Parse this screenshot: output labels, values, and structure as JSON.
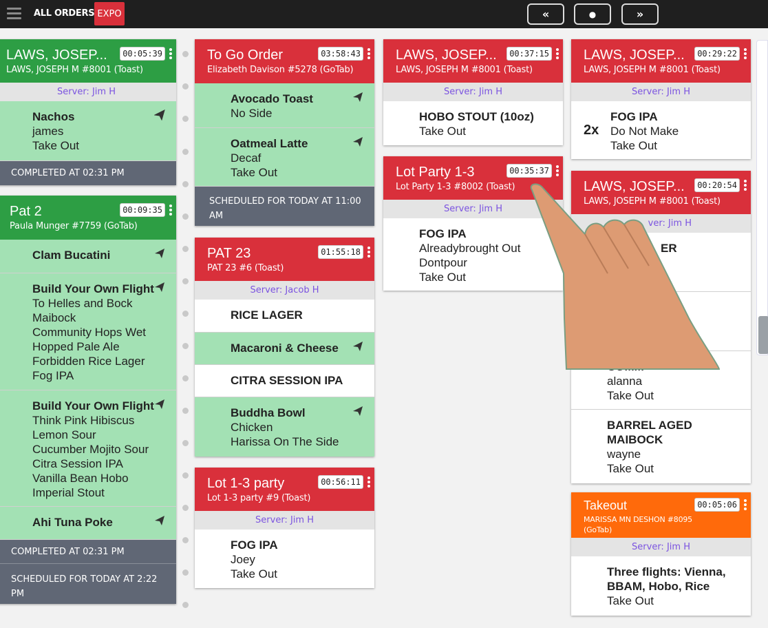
{
  "topbar": {
    "title": "ALL ORDERS",
    "badge": "EXPO",
    "nav_prev": "«",
    "nav_center": "●",
    "nav_next": "»"
  },
  "server_prefix": "Server: ",
  "cards": {
    "c1": {
      "name": "LAWS, JOSEP...",
      "sub": "LAWS, JOSEPH M #8001 (Toast)",
      "timer": "00:05:39",
      "server": "Server: Jim H",
      "items": [
        {
          "name": "Nachos",
          "lines": [
            "james",
            "Take Out"
          ]
        }
      ],
      "footer": "COMPLETED AT 02:31 PM"
    },
    "c2": {
      "name": "Pat 2",
      "sub": "Paula Munger #7759 (GoTab)",
      "timer": "00:09:35",
      "items": [
        {
          "name": "Clam Bucatini",
          "lines": []
        },
        {
          "name": "Build Your Own Flight",
          "lines": [
            "To Helles and Bock",
            "Maibock",
            "Community Hops Wet",
            "Hopped Pale Ale",
            "Forbidden Rice Lager",
            "Fog IPA"
          ]
        },
        {
          "name": "Build Your Own Flight",
          "lines": [
            "Think Pink Hibiscus",
            "Lemon Sour",
            "Cucumber Mojito Sour",
            "Citra Session IPA",
            "Vanilla Bean Hobo",
            "Imperial Stout"
          ]
        },
        {
          "name": "Ahi Tuna Poke",
          "lines": []
        }
      ],
      "footer1": "COMPLETED AT 02:31 PM",
      "footer2": "SCHEDULED FOR TODAY AT 2:22 PM"
    },
    "c3": {
      "name": "To Go Order",
      "sub": "Elizabeth Davison #5278 (GoTab)",
      "timer": "03:58:43",
      "items": [
        {
          "name": "Avocado Toast",
          "lines": [
            "No Side"
          ]
        },
        {
          "name": "Oatmeal Latte",
          "lines": [
            "Decaf",
            "Take Out"
          ]
        }
      ],
      "footer": "SCHEDULED FOR TODAY AT 11:00 AM"
    },
    "c4": {
      "name": "PAT 23",
      "sub": "PAT 23 #6 (Toast)",
      "timer": "01:55:18",
      "server": "Server: Jacob H",
      "items": [
        {
          "name": "RICE LAGER",
          "lines": []
        },
        {
          "name": "Macaroni & Cheese",
          "lines": []
        },
        {
          "name": "CITRA SESSION IPA",
          "lines": []
        },
        {
          "name": "Buddha Bowl",
          "lines": [
            "Chicken",
            "Harissa On The Side"
          ]
        }
      ]
    },
    "c5": {
      "name": "Lot 1-3 party",
      "sub": "Lot 1-3 party #9 (Toast)",
      "timer": "00:56:11",
      "server": "Server: Jim H",
      "items": [
        {
          "name": "FOG IPA",
          "lines": [
            "Joey",
            "Take Out"
          ]
        }
      ]
    },
    "c6": {
      "name": "LAWS, JOSEP...",
      "sub": "LAWS, JOSEPH M #8001 (Toast)",
      "timer": "00:37:15",
      "server": "Server: Jim H",
      "items": [
        {
          "name": "HOBO STOUT (10oz)",
          "lines": [
            "Take Out"
          ]
        }
      ]
    },
    "c7": {
      "name": "Lot Party 1-3",
      "sub": "Lot Party 1-3 #8002 (Toast)",
      "timer": "00:35:37",
      "server": "Server: Jim H",
      "items": [
        {
          "name": "FOG IPA",
          "lines": [
            "Alreadybrought Out",
            "Dontpour",
            "Take Out"
          ]
        }
      ]
    },
    "c8": {
      "name": "LAWS, JOSEP...",
      "sub": "LAWS, JOSEPH M #8001 (Toast)",
      "timer": "00:29:22",
      "server": "Server: Jim H",
      "items": [
        {
          "qty": "2x",
          "name": "FOG IPA",
          "lines": [
            "Do Not Make",
            "Take Out"
          ]
        }
      ]
    },
    "c9": {
      "name": "LAWS, JOSEP...",
      "sub": "LAWS, JOSEPH M #8001 (Toast)",
      "timer": "00:20:54",
      "server": "ver: Jim H",
      "items": [
        {
          "name": "ER",
          "lines": []
        },
        {
          "name": "",
          "lines": []
        },
        {
          "name": "COMM",
          "lines": [
            "alanna",
            "Take Out"
          ]
        },
        {
          "name": "BARREL AGED MAIBOCK",
          "lines": [
            "wayne",
            "Take Out"
          ]
        }
      ]
    },
    "c10": {
      "name": "Takeout",
      "sub": "MARISSA MN DESHON #8095 (GoTab)",
      "timer": "00:05:06",
      "server": "Server: Jim H",
      "items": [
        {
          "name": "Three flights: Vienna, BBAM, Hobo, Rice",
          "lines": [
            "Take Out"
          ]
        }
      ]
    }
  },
  "colors": {
    "green": "#2d9e44",
    "red": "#d9303b",
    "orange": "#ff6a0b",
    "item_green": "#a3e1b4",
    "footer": "#606775",
    "server_text": "#7b53e0"
  }
}
